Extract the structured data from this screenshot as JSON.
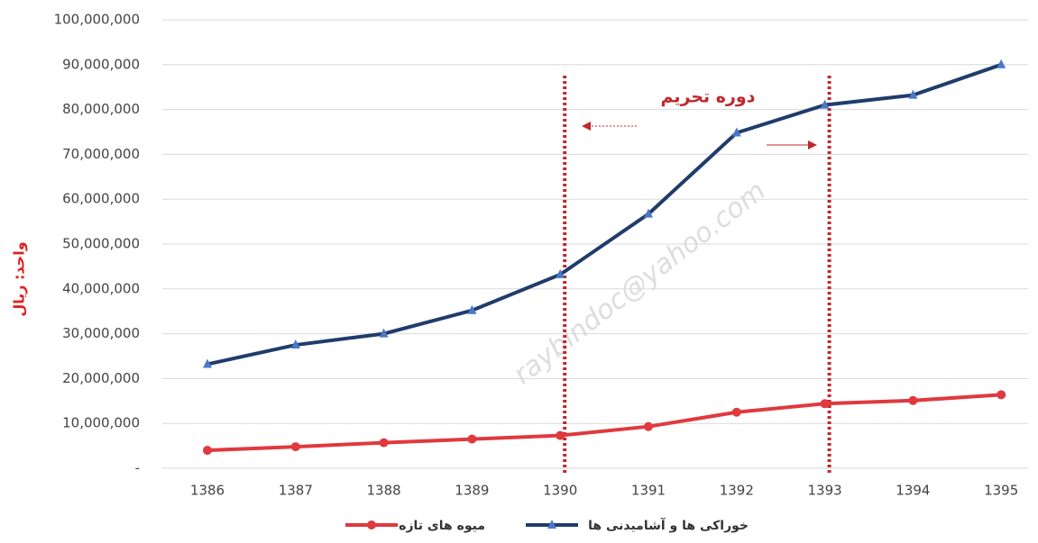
{
  "chart_data": {
    "type": "line",
    "y_label": "واحد: ریال",
    "categories": [
      "1386",
      "1387",
      "1388",
      "1389",
      "1390",
      "1391",
      "1392",
      "1393",
      "1394",
      "1395"
    ],
    "series": [
      {
        "name": "میوه های تازه",
        "color": "#e0393e",
        "marker": "circle",
        "values": [
          4000000,
          4800000,
          5700000,
          6500000,
          7300000,
          9300000,
          12500000,
          14400000,
          15100000,
          16400000
        ]
      },
      {
        "name": "خوراکی ها و آشامیدنی ها",
        "color": "#203c6c",
        "marker": "triangle",
        "values": [
          23200000,
          27500000,
          30000000,
          35200000,
          43200000,
          56700000,
          74800000,
          81000000,
          83200000,
          90000000
        ]
      }
    ],
    "ylim": [
      0,
      100000000
    ],
    "yticks": [
      {
        "value": 0,
        "label": "-"
      },
      {
        "value": 10000000,
        "label": "10,000,000"
      },
      {
        "value": 20000000,
        "label": "20,000,000"
      },
      {
        "value": 30000000,
        "label": "30,000,000"
      },
      {
        "value": 40000000,
        "label": "40,000,000"
      },
      {
        "value": 50000000,
        "label": "50,000,000"
      },
      {
        "value": 60000000,
        "label": "60,000,000"
      },
      {
        "value": 70000000,
        "label": "70,000,000"
      },
      {
        "value": 80000000,
        "label": "80,000,000"
      },
      {
        "value": 90000000,
        "label": "90,000,000"
      },
      {
        "value": 100000000,
        "label": "100,000,000"
      }
    ],
    "grid": true,
    "legend": "bottom",
    "annotation": {
      "text": "دوره تحریم",
      "from": "1390",
      "to": "1393",
      "color": "#c0282d"
    },
    "watermark": "raybindoc@yahoo.com"
  }
}
